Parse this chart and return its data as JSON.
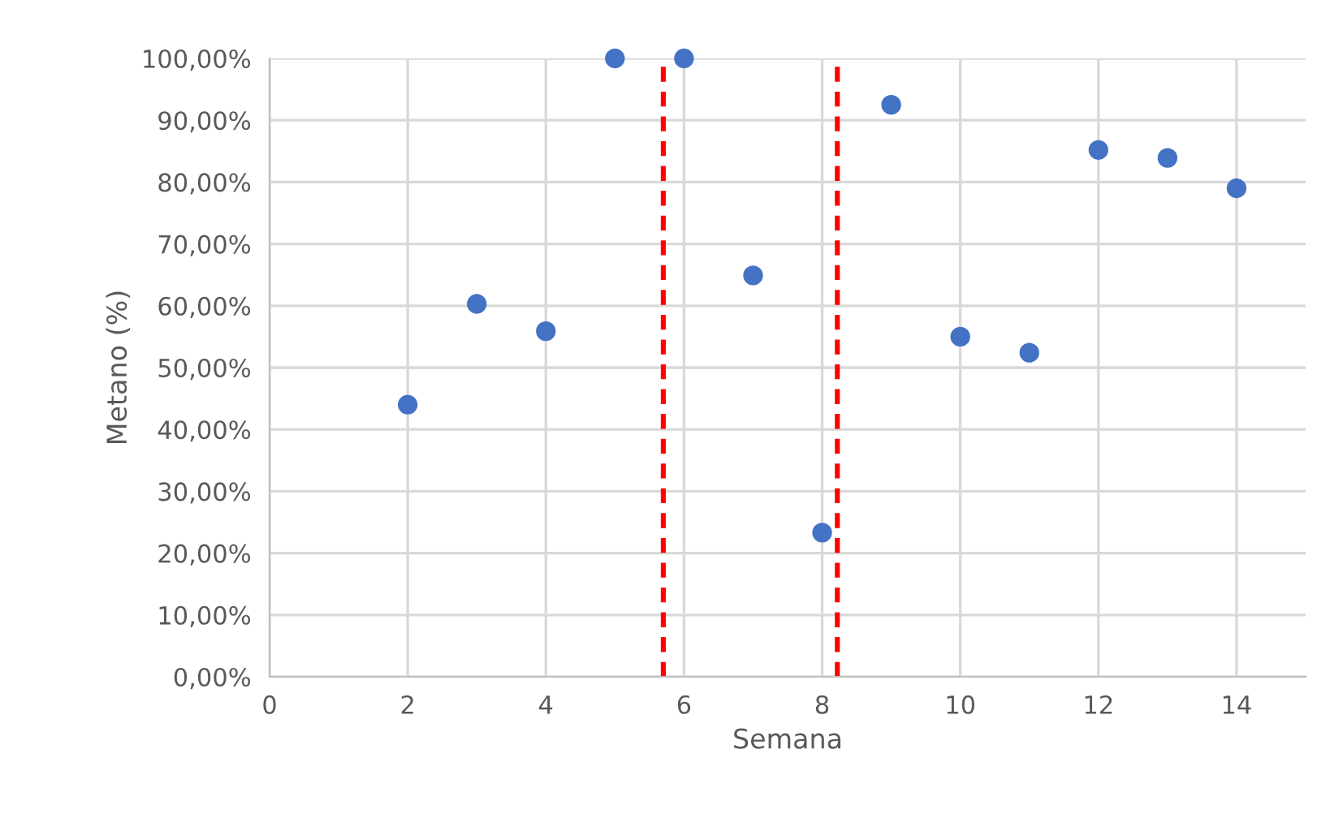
{
  "chart_data": {
    "type": "scatter",
    "xlabel": "Semana",
    "ylabel": "Metano (%)",
    "x": [
      2,
      3,
      4,
      5,
      6,
      7,
      8,
      9,
      10,
      11,
      12,
      13,
      14
    ],
    "series": [
      {
        "color": "#4472c4",
        "values": [
          44.0,
          60.3,
          55.9,
          100,
          100,
          64.9,
          23.3,
          92.5,
          55.0,
          52.4,
          85.2,
          83.9,
          79.0
        ]
      }
    ],
    "xlim": [
      0,
      15
    ],
    "xticks": [
      0,
      2,
      4,
      6,
      8,
      10,
      12,
      14
    ],
    "ylim": [
      0,
      100
    ],
    "yticks": [
      {
        "value": 0,
        "label": "0,00%"
      },
      {
        "value": 10,
        "label": "10,00%"
      },
      {
        "value": 20,
        "label": "20,00%"
      },
      {
        "value": 30,
        "label": "30,00%"
      },
      {
        "value": 40,
        "label": "40,00%"
      },
      {
        "value": 50,
        "label": "50,00%"
      },
      {
        "value": 60,
        "label": "60,00%"
      },
      {
        "value": 70,
        "label": "70,00%"
      },
      {
        "value": 80,
        "label": "80,00%"
      },
      {
        "value": 90,
        "label": "90,00%"
      },
      {
        "value": 100,
        "label": "100,00%"
      }
    ],
    "ref_lines": [
      {
        "axis": "x",
        "value": 5.7,
        "color": "#ff0000",
        "line_style": "dashed"
      },
      {
        "axis": "x",
        "value": 8.22,
        "color": "#ff0000",
        "line_style": "dashed"
      }
    ],
    "grid": true,
    "marker": "circle"
  }
}
